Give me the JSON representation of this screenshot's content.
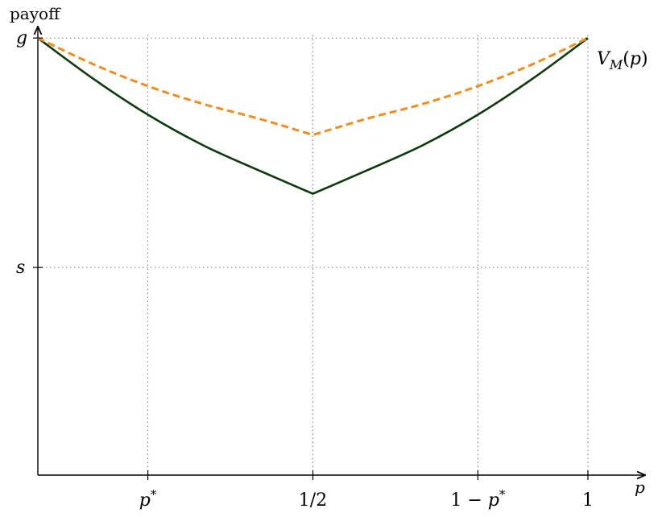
{
  "chart_data": {
    "type": "line",
    "xlabel": "p",
    "ylabel": "payoff",
    "xlim": [
      0,
      1
    ],
    "ylim": [
      0,
      1
    ],
    "x_ticks": [
      {
        "value": 0.2,
        "label": "p*"
      },
      {
        "value": 0.5,
        "label": "1/2"
      },
      {
        "value": 0.8,
        "label": "1 − p*"
      },
      {
        "value": 1.0,
        "label": "1"
      }
    ],
    "y_ticks": [
      {
        "value": 0.9523,
        "label": "g"
      },
      {
        "value": 0.4524,
        "label": "s"
      }
    ],
    "grid": "dotted",
    "series": [
      {
        "name": "V_M(p)",
        "style": "solid",
        "color": "#0b3a0b",
        "x": [
          0,
          0.1,
          0.2,
          0.3,
          0.4,
          0.5,
          0.6,
          0.7,
          0.8,
          0.9,
          1.0
        ],
        "y": [
          0.9523,
          0.8641,
          0.7853,
          0.7189,
          0.6648,
          0.613,
          0.6648,
          0.7189,
          0.7853,
          0.8641,
          0.9523
        ]
      },
      {
        "style": "dashed",
        "color": "#f28c1c",
        "x": [
          0,
          0.1,
          0.2,
          0.3,
          0.4,
          0.5,
          0.6,
          0.7,
          0.8,
          0.9,
          1.0
        ],
        "y": [
          0.9523,
          0.8955,
          0.8475,
          0.8087,
          0.7771,
          0.7412,
          0.7771,
          0.8087,
          0.8475,
          0.8955,
          0.9523
        ]
      }
    ],
    "series_label": {
      "base": "V",
      "sub": "M",
      "arg": "(p)"
    }
  }
}
